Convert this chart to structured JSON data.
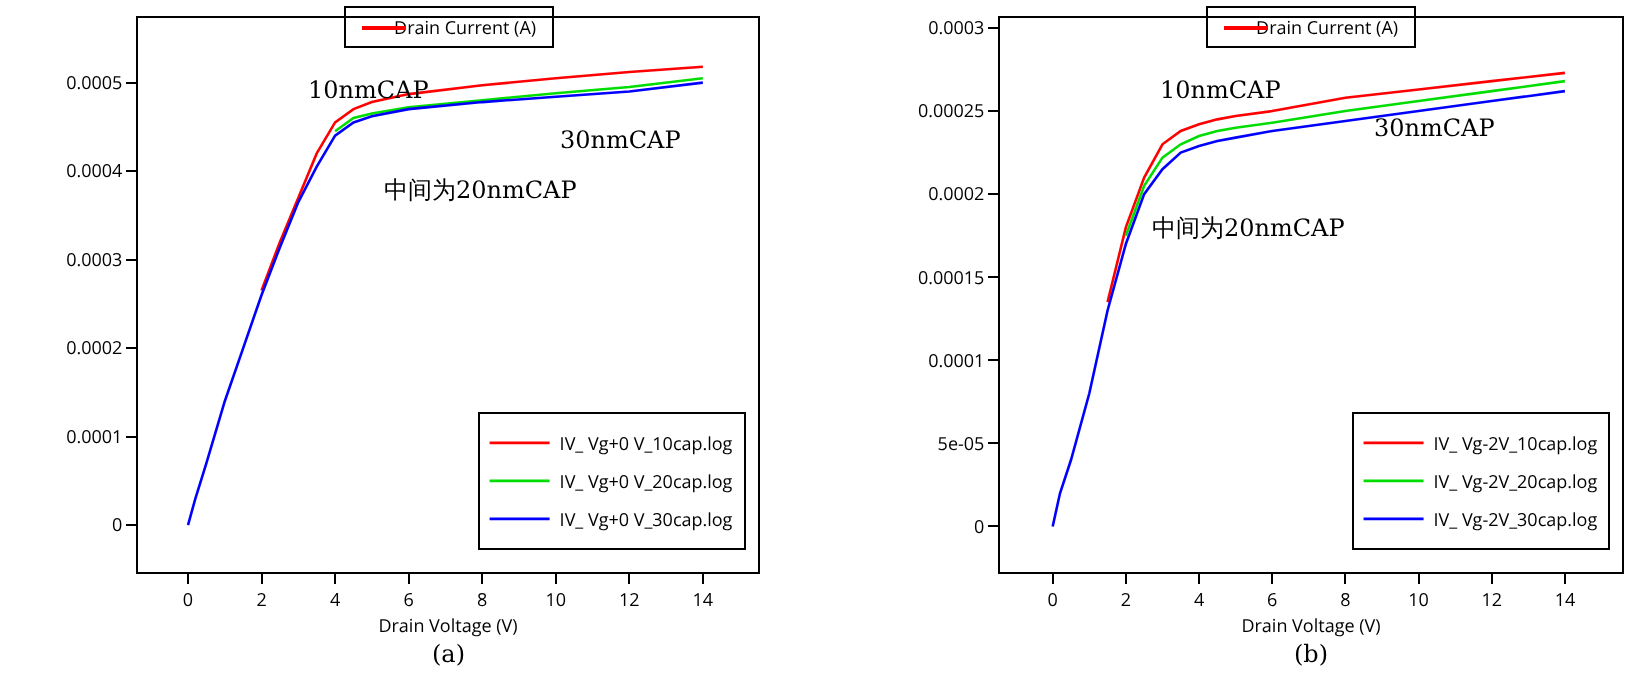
{
  "chart_data": [
    {
      "type": "line",
      "title": "Drain Current (A)",
      "xlabel": "Drain Voltage (V)",
      "x": [
        0,
        0.2,
        0.5,
        1,
        1.5,
        2,
        2.5,
        3,
        3.5,
        4,
        4.5,
        5,
        6,
        8,
        10,
        12,
        14
      ],
      "series": [
        {
          "name": "IV_ Vg+0 V_10cap.log",
          "color": "#ff0000",
          "x": [
            2,
            2.5,
            3,
            3.5,
            4,
            4.5,
            5,
            6,
            8,
            10,
            12,
            14
          ],
          "values": [
            0.000265,
            0.00032,
            0.00037,
            0.00042,
            0.000455,
            0.00047,
            0.000478,
            0.000487,
            0.000497,
            0.000505,
            0.000512,
            0.000518
          ]
        },
        {
          "name": "IV_ Vg+0 V_20cap.log",
          "color": "#00dd00",
          "x": [
            4,
            4.5,
            5,
            6,
            8,
            10,
            12,
            14
          ],
          "values": [
            0.000445,
            0.00046,
            0.000465,
            0.000472,
            0.00048,
            0.000488,
            0.000495,
            0.000505
          ]
        },
        {
          "name": "IV_ Vg+0 V_30cap.log",
          "color": "#0000ff",
          "values": [
            0,
            3e-05,
            7e-05,
            0.00014,
            0.0002,
            0.00026,
            0.000314,
            0.000365,
            0.000405,
            0.00044,
            0.000455,
            0.000462,
            0.00047,
            0.000478,
            0.000484,
            0.00049,
            0.0005
          ]
        }
      ],
      "xlim": [
        -1.36,
        15.5
      ],
      "ylim": [
        -5.3e-05,
        0.000573
      ],
      "xticks": [
        0,
        2,
        4,
        6,
        8,
        10,
        12,
        14
      ],
      "yticks": [
        {
          "value": 0,
          "label": "0"
        },
        {
          "value": 0.0001,
          "label": "0.0001"
        },
        {
          "value": 0.0002,
          "label": "0.0002"
        },
        {
          "value": 0.0003,
          "label": "0.0003"
        },
        {
          "value": 0.0004,
          "label": "0.0004"
        },
        {
          "value": 0.0005,
          "label": "0.0005"
        }
      ],
      "grid": false,
      "legend": "bottom right",
      "line_style": "solid",
      "annotations": [
        "10nmCAP",
        "30nmCAP",
        "中间为20nmCAP",
        "(a)"
      ]
    },
    {
      "type": "line",
      "title": "Drain Current (A)",
      "xlabel": "Drain Voltage (V)",
      "x": [
        0,
        0.2,
        0.5,
        1,
        1.5,
        2,
        2.5,
        3,
        3.5,
        4,
        4.5,
        5,
        6,
        8,
        10,
        12,
        14
      ],
      "series": [
        {
          "name": "IV_ Vg-2V_10cap.log",
          "color": "#ff0000",
          "x": [
            1.5,
            2,
            2.5,
            3,
            3.5,
            4,
            4.5,
            5,
            6,
            8,
            10,
            12,
            14
          ],
          "values": [
            0.000135,
            0.00018,
            0.00021,
            0.00023,
            0.000238,
            0.000242,
            0.000245,
            0.000247,
            0.00025,
            0.000258,
            0.000263,
            0.000268,
            0.000273
          ]
        },
        {
          "name": "IV_ Vg-2V_20cap.log",
          "color": "#00dd00",
          "x": [
            2,
            2.5,
            3,
            3.5,
            4,
            4.5,
            5,
            6,
            8,
            10,
            12,
            14
          ],
          "values": [
            0.000175,
            0.000205,
            0.000222,
            0.00023,
            0.000235,
            0.000238,
            0.00024,
            0.000243,
            0.00025,
            0.000256,
            0.000262,
            0.000268
          ]
        },
        {
          "name": "IV_ Vg-2V_30cap.log",
          "color": "#0000ff",
          "values": [
            0,
            2e-05,
            4e-05,
            8e-05,
            0.00013,
            0.00017,
            0.0002,
            0.000215,
            0.000225,
            0.000229,
            0.000232,
            0.000234,
            0.000238,
            0.000244,
            0.00025,
            0.000256,
            0.000262
          ]
        }
      ],
      "xlim": [
        -1.44,
        15.56
      ],
      "ylim": [
        -2.74e-05,
        0.000306
      ],
      "xticks": [
        0,
        2,
        4,
        6,
        8,
        10,
        12,
        14
      ],
      "yticks": [
        {
          "value": 0,
          "label": "0"
        },
        {
          "value": 5e-05,
          "label": "5e-05"
        },
        {
          "value": 0.0001,
          "label": "0.0001"
        },
        {
          "value": 0.00015,
          "label": "0.00015"
        },
        {
          "value": 0.0002,
          "label": "0.0002"
        },
        {
          "value": 0.00025,
          "label": "0.00025"
        },
        {
          "value": 0.0003,
          "label": "0.0003"
        }
      ],
      "grid": false,
      "legend": "bottom right",
      "line_style": "solid",
      "annotations": [
        "10nmCAP",
        "30nmCAP",
        "中间为20nmCAP",
        "(b)"
      ]
    }
  ]
}
